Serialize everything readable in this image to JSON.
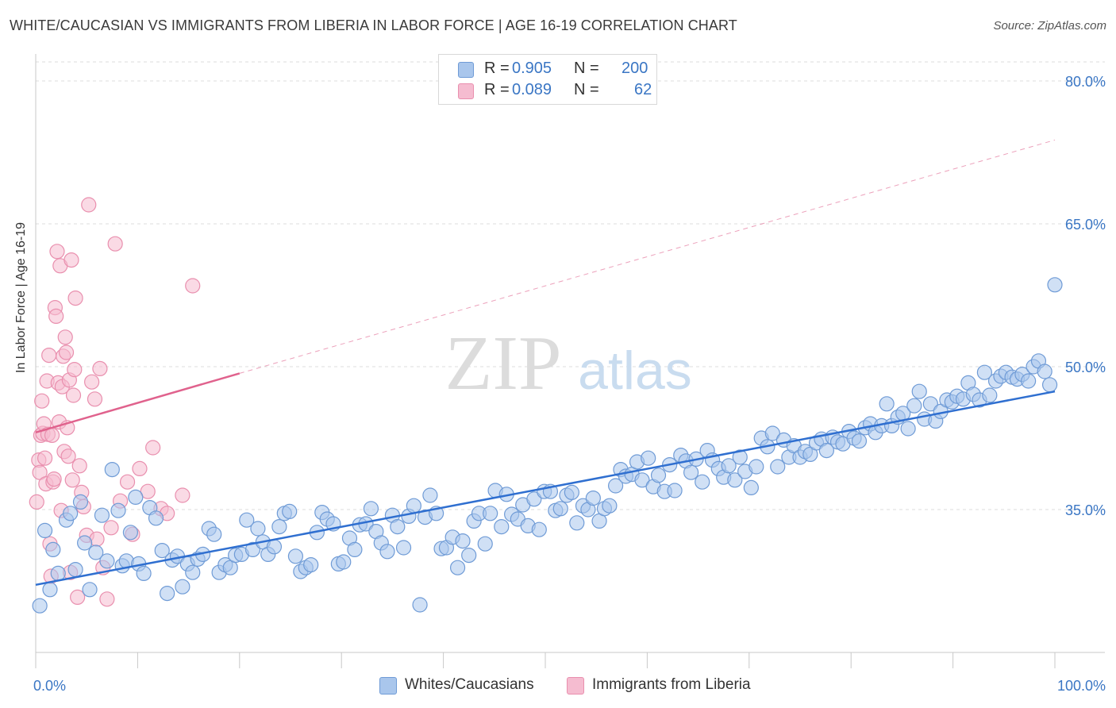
{
  "header": {
    "title": "WHITE/CAUCASIAN VS IMMIGRANTS FROM LIBERIA IN LABOR FORCE | AGE 16-19 CORRELATION CHART",
    "source": "Source: ZipAtlas.com"
  },
  "watermark": {
    "zip": "ZIP",
    "atlas": "atlas"
  },
  "colors": {
    "blue_fill": "#a9c6ec",
    "blue_stroke": "#6f9bd6",
    "blue_line": "#2f6fd0",
    "pink_fill": "#f5bcd0",
    "pink_stroke": "#e98fae",
    "pink_line": "#e0628d",
    "axis_text": "#3a76c4"
  },
  "legend": {
    "rows": [
      {
        "r_label": "R =",
        "r_value": "0.905",
        "n_label": "N =",
        "n_value": "200"
      },
      {
        "r_label": "R =",
        "r_value": "0.089",
        "n_label": "N =",
        "n_value": "62"
      }
    ]
  },
  "bottom_legend": {
    "blue": "Whites/Caucasians",
    "pink": "Immigrants from Liberia"
  },
  "chart_data": {
    "type": "scatter",
    "title": "WHITE/CAUCASIAN VS IMMIGRANTS FROM LIBERIA IN LABOR FORCE | AGE 16-19 CORRELATION CHART",
    "ylabel": "In Labor Force | Age 16-19",
    "xlabel": "",
    "xlim": [
      0,
      100
    ],
    "ylim": [
      20,
      82
    ],
    "x_tick_labels": [
      "0.0%",
      "100.0%"
    ],
    "y_ticks": [
      35,
      50,
      65,
      80
    ],
    "y_tick_labels": [
      "35.0%",
      "50.0%",
      "65.0%",
      "80.0%"
    ],
    "grid": "horizontal dashed",
    "legend_position": "top-center",
    "series": [
      {
        "name": "Whites/Caucasians",
        "color": "#a9c6ec",
        "r": 0.905,
        "n": 200,
        "trend": {
          "x": [
            0,
            100
          ],
          "y": [
            27.1,
            47.4
          ],
          "style": "solid"
        },
        "points": [
          [
            0.4,
            24.9
          ],
          [
            0.9,
            32.8
          ],
          [
            1.4,
            26.6
          ],
          [
            1.7,
            30.8
          ],
          [
            2.2,
            28.3
          ],
          [
            3.0,
            33.9
          ],
          [
            3.4,
            34.6
          ],
          [
            3.9,
            28.7
          ],
          [
            4.4,
            35.8
          ],
          [
            4.8,
            31.5
          ],
          [
            5.3,
            26.6
          ],
          [
            5.9,
            30.5
          ],
          [
            6.5,
            34.4
          ],
          [
            7.0,
            29.6
          ],
          [
            7.5,
            39.2
          ],
          [
            8.1,
            34.9
          ],
          [
            8.5,
            29.1
          ],
          [
            8.9,
            29.6
          ],
          [
            9.3,
            32.6
          ],
          [
            9.8,
            36.3
          ],
          [
            10.1,
            29.3
          ],
          [
            10.6,
            28.3
          ],
          [
            11.2,
            35.2
          ],
          [
            11.8,
            34.1
          ],
          [
            12.4,
            30.7
          ],
          [
            12.9,
            26.2
          ],
          [
            13.4,
            29.7
          ],
          [
            13.9,
            30.1
          ],
          [
            14.4,
            26.9
          ],
          [
            14.9,
            29.3
          ],
          [
            15.4,
            28.4
          ],
          [
            15.9,
            29.8
          ],
          [
            16.4,
            30.3
          ],
          [
            17.0,
            33.0
          ],
          [
            17.5,
            32.4
          ],
          [
            18.0,
            28.4
          ],
          [
            18.6,
            29.2
          ],
          [
            19.1,
            28.9
          ],
          [
            19.6,
            30.2
          ],
          [
            20.2,
            30.3
          ],
          [
            20.7,
            33.9
          ],
          [
            21.3,
            30.8
          ],
          [
            21.8,
            33.0
          ],
          [
            22.3,
            31.6
          ],
          [
            22.8,
            30.3
          ],
          [
            23.4,
            31.1
          ],
          [
            23.9,
            33.2
          ],
          [
            24.4,
            34.6
          ],
          [
            24.9,
            34.8
          ],
          [
            25.5,
            30.1
          ],
          [
            26.0,
            28.5
          ],
          [
            26.5,
            28.9
          ],
          [
            27.0,
            29.2
          ],
          [
            27.6,
            32.6
          ],
          [
            28.1,
            34.7
          ],
          [
            28.6,
            34.0
          ],
          [
            29.2,
            33.5
          ],
          [
            29.7,
            29.3
          ],
          [
            30.2,
            29.5
          ],
          [
            30.8,
            32.0
          ],
          [
            31.3,
            30.8
          ],
          [
            31.8,
            33.4
          ],
          [
            32.4,
            33.5
          ],
          [
            32.9,
            35.1
          ],
          [
            33.4,
            32.7
          ],
          [
            33.9,
            31.5
          ],
          [
            34.5,
            30.6
          ],
          [
            35.0,
            34.4
          ],
          [
            35.5,
            33.2
          ],
          [
            36.1,
            31.0
          ],
          [
            36.6,
            34.3
          ],
          [
            37.1,
            35.4
          ],
          [
            37.7,
            25.0
          ],
          [
            38.2,
            34.2
          ],
          [
            38.7,
            36.5
          ],
          [
            39.3,
            34.6
          ],
          [
            39.8,
            30.9
          ],
          [
            40.3,
            31.0
          ],
          [
            40.9,
            32.1
          ],
          [
            41.4,
            28.9
          ],
          [
            41.9,
            31.7
          ],
          [
            42.5,
            30.2
          ],
          [
            43.0,
            33.8
          ],
          [
            43.5,
            34.6
          ],
          [
            44.1,
            31.4
          ],
          [
            44.6,
            34.6
          ],
          [
            45.1,
            37.0
          ],
          [
            45.7,
            33.2
          ],
          [
            46.2,
            36.6
          ],
          [
            46.7,
            34.5
          ],
          [
            47.3,
            34.0
          ],
          [
            47.8,
            35.5
          ],
          [
            48.3,
            33.3
          ],
          [
            48.9,
            36.1
          ],
          [
            49.4,
            32.9
          ],
          [
            49.9,
            36.9
          ],
          [
            50.5,
            36.9
          ],
          [
            51.0,
            34.9
          ],
          [
            51.5,
            35.1
          ],
          [
            52.1,
            36.5
          ],
          [
            52.6,
            36.8
          ],
          [
            53.1,
            33.6
          ],
          [
            53.7,
            35.4
          ],
          [
            54.2,
            35.0
          ],
          [
            54.7,
            36.2
          ],
          [
            55.3,
            33.8
          ],
          [
            55.8,
            35.1
          ],
          [
            56.3,
            35.4
          ],
          [
            56.9,
            37.5
          ],
          [
            57.4,
            39.2
          ],
          [
            57.9,
            38.5
          ],
          [
            58.5,
            38.7
          ],
          [
            59.0,
            40.0
          ],
          [
            59.5,
            38.1
          ],
          [
            60.1,
            40.4
          ],
          [
            60.6,
            37.4
          ],
          [
            61.1,
            38.6
          ],
          [
            61.7,
            36.9
          ],
          [
            62.2,
            39.7
          ],
          [
            62.7,
            37.0
          ],
          [
            63.3,
            40.7
          ],
          [
            63.8,
            40.1
          ],
          [
            64.3,
            38.9
          ],
          [
            64.8,
            40.3
          ],
          [
            65.4,
            37.9
          ],
          [
            65.9,
            41.2
          ],
          [
            66.4,
            40.2
          ],
          [
            67.0,
            39.3
          ],
          [
            67.5,
            38.4
          ],
          [
            68.0,
            39.6
          ],
          [
            68.6,
            38.1
          ],
          [
            69.1,
            40.5
          ],
          [
            69.6,
            39.0
          ],
          [
            70.2,
            37.3
          ],
          [
            70.7,
            39.5
          ],
          [
            71.2,
            42.5
          ],
          [
            71.8,
            41.6
          ],
          [
            72.3,
            43.0
          ],
          [
            72.8,
            39.5
          ],
          [
            73.4,
            42.3
          ],
          [
            73.9,
            40.5
          ],
          [
            74.4,
            41.7
          ],
          [
            75.0,
            40.5
          ],
          [
            75.5,
            41.1
          ],
          [
            76.0,
            40.8
          ],
          [
            76.6,
            42.0
          ],
          [
            77.1,
            42.4
          ],
          [
            77.6,
            41.2
          ],
          [
            78.2,
            42.6
          ],
          [
            78.7,
            42.1
          ],
          [
            79.2,
            41.9
          ],
          [
            79.8,
            43.2
          ],
          [
            80.3,
            42.5
          ],
          [
            80.8,
            42.2
          ],
          [
            81.4,
            43.6
          ],
          [
            81.9,
            44.0
          ],
          [
            82.4,
            43.1
          ],
          [
            83.0,
            43.8
          ],
          [
            83.5,
            46.1
          ],
          [
            84.0,
            43.8
          ],
          [
            84.6,
            44.7
          ],
          [
            85.1,
            45.1
          ],
          [
            85.6,
            43.5
          ],
          [
            86.2,
            45.9
          ],
          [
            86.7,
            47.4
          ],
          [
            87.2,
            44.5
          ],
          [
            87.8,
            46.1
          ],
          [
            88.3,
            44.3
          ],
          [
            88.8,
            45.3
          ],
          [
            89.4,
            46.5
          ],
          [
            89.9,
            46.3
          ],
          [
            90.4,
            46.9
          ],
          [
            91.0,
            46.6
          ],
          [
            91.5,
            48.3
          ],
          [
            92.0,
            47.1
          ],
          [
            92.6,
            46.5
          ],
          [
            93.1,
            49.4
          ],
          [
            93.6,
            47.0
          ],
          [
            94.2,
            48.5
          ],
          [
            94.7,
            49.0
          ],
          [
            95.2,
            49.4
          ],
          [
            95.8,
            48.9
          ],
          [
            96.3,
            48.7
          ],
          [
            96.8,
            49.2
          ],
          [
            97.4,
            48.5
          ],
          [
            97.9,
            50.0
          ],
          [
            98.4,
            50.6
          ],
          [
            99.0,
            49.5
          ],
          [
            99.5,
            48.1
          ],
          [
            100.0,
            58.6
          ]
        ]
      },
      {
        "name": "Immigrants from Liberia",
        "color": "#f5bcd0",
        "r": 0.089,
        "n": 62,
        "trend": {
          "x": [
            0,
            20
          ],
          "y": [
            43.1,
            49.3
          ],
          "style": "solid",
          "extended": {
            "x": [
              20,
              100
            ],
            "y": [
              49.3,
              73.8
            ],
            "style": "dashed"
          }
        },
        "points": [
          [
            0.1,
            35.8
          ],
          [
            0.3,
            40.2
          ],
          [
            0.4,
            38.9
          ],
          [
            0.5,
            42.8
          ],
          [
            0.6,
            46.4
          ],
          [
            0.7,
            43.0
          ],
          [
            0.8,
            44.0
          ],
          [
            0.9,
            40.4
          ],
          [
            1.0,
            37.7
          ],
          [
            1.1,
            48.5
          ],
          [
            1.2,
            42.9
          ],
          [
            1.3,
            51.2
          ],
          [
            1.4,
            31.4
          ],
          [
            1.5,
            28.0
          ],
          [
            1.6,
            42.8
          ],
          [
            1.7,
            37.9
          ],
          [
            1.8,
            38.2
          ],
          [
            1.9,
            56.2
          ],
          [
            2.0,
            55.3
          ],
          [
            2.1,
            62.1
          ],
          [
            2.2,
            48.3
          ],
          [
            2.3,
            44.2
          ],
          [
            2.4,
            60.6
          ],
          [
            2.5,
            34.9
          ],
          [
            2.6,
            47.9
          ],
          [
            2.7,
            51.1
          ],
          [
            2.8,
            41.1
          ],
          [
            2.9,
            53.1
          ],
          [
            3.0,
            51.5
          ],
          [
            3.1,
            43.6
          ],
          [
            3.2,
            40.6
          ],
          [
            3.3,
            48.6
          ],
          [
            3.4,
            28.4
          ],
          [
            3.5,
            61.2
          ],
          [
            3.6,
            38.1
          ],
          [
            3.7,
            47.0
          ],
          [
            3.8,
            49.7
          ],
          [
            3.9,
            57.2
          ],
          [
            4.1,
            25.8
          ],
          [
            4.3,
            39.6
          ],
          [
            4.5,
            36.8
          ],
          [
            4.7,
            35.3
          ],
          [
            5.0,
            32.3
          ],
          [
            5.2,
            67.0
          ],
          [
            5.5,
            48.4
          ],
          [
            5.8,
            46.6
          ],
          [
            6.0,
            31.9
          ],
          [
            6.3,
            49.8
          ],
          [
            6.6,
            28.9
          ],
          [
            7.0,
            25.6
          ],
          [
            7.4,
            33.1
          ],
          [
            7.8,
            62.9
          ],
          [
            8.3,
            35.9
          ],
          [
            9.0,
            37.9
          ],
          [
            9.5,
            32.4
          ],
          [
            10.2,
            39.3
          ],
          [
            11.0,
            36.9
          ],
          [
            11.5,
            41.5
          ],
          [
            12.3,
            35.1
          ],
          [
            12.9,
            34.6
          ],
          [
            14.4,
            36.5
          ],
          [
            15.4,
            58.5
          ]
        ]
      }
    ]
  }
}
